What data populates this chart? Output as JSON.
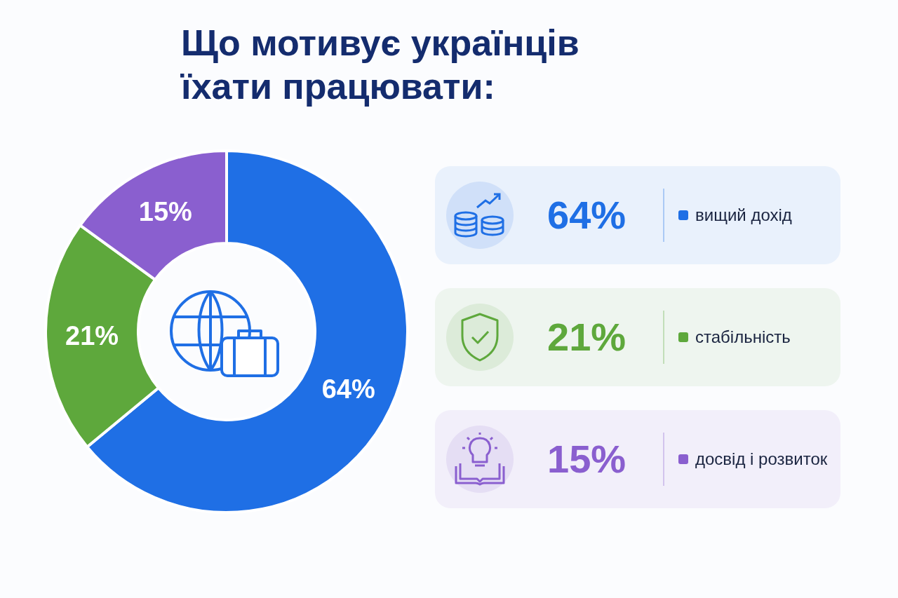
{
  "chart_data": {
    "type": "donut",
    "title": "Що мотивує українців їхати працювати:",
    "categories": [
      "вищий дохід",
      "стабільність",
      "досвід і розвиток"
    ],
    "values": [
      64,
      21,
      15
    ],
    "colors": [
      "#1f6fe5",
      "#5ea83c",
      "#8a5fcf"
    ],
    "value_labels": [
      "64%",
      "21%",
      "15%"
    ],
    "legend": "right"
  }
}
